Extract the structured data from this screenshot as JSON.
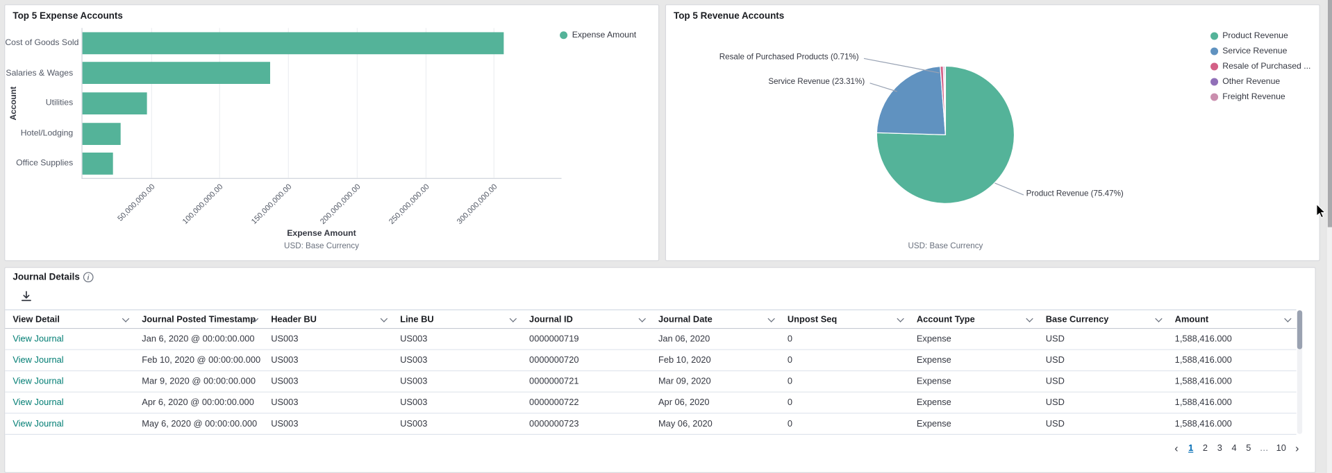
{
  "chart_data": [
    {
      "type": "bar",
      "orientation": "horizontal",
      "title": "Top 5 Expense Accounts",
      "series_name": "Expense Amount",
      "categories": [
        "Cost of Goods Sold",
        "Salaries & Wages",
        "Utilities",
        "Hotel/Lodging",
        "Office Supplies"
      ],
      "values": [
        307000000,
        137000000,
        47000000,
        28000000,
        22000000
      ],
      "xlabel": "Expense Amount",
      "xlabel_sub": "USD: Base Currency",
      "ylabel": "Account",
      "xlim": [
        0,
        350000000
      ],
      "x_ticks": [
        {
          "value": 50000000,
          "label": "50,000,000.00"
        },
        {
          "value": 100000000,
          "label": "100,000,000.00"
        },
        {
          "value": 150000000,
          "label": "150,000,000.00"
        },
        {
          "value": 200000000,
          "label": "200,000,000.00"
        },
        {
          "value": 250000000,
          "label": "250,000,000.00"
        },
        {
          "value": 300000000,
          "label": "300,000,000.00"
        }
      ],
      "bar_color": "#54B399",
      "grid": true,
      "legend_position": "top-right"
    },
    {
      "type": "pie",
      "title": "Top 5 Revenue Accounts",
      "labels": [
        "Product Revenue",
        "Service Revenue",
        "Resale of Purchased Products",
        "Other Revenue",
        "Freight Revenue"
      ],
      "values_pct": [
        75.47,
        23.31,
        0.71,
        0.31,
        0.2
      ],
      "colors": [
        "#54B399",
        "#6092C0",
        "#D36086",
        "#9170B8",
        "#CA8EAE"
      ],
      "legend_labels": [
        "Product Revenue",
        "Service Revenue",
        "Resale of Purchased ...",
        "Other Revenue",
        "Freight Revenue"
      ],
      "callouts": [
        "Resale of Purchased Products (0.71%)",
        "Service Revenue (23.31%)",
        "Product Revenue (75.47%)"
      ],
      "footer": "USD: Base Currency",
      "legend_position": "right"
    }
  ],
  "journal_panel": {
    "title": "Journal Details",
    "info_glyph": "i",
    "columns": [
      "View Detail",
      "Journal Posted Timestamp",
      "Header BU",
      "Line BU",
      "Journal ID",
      "Journal Date",
      "Unpost Seq",
      "Account Type",
      "Base Currency",
      "Amount"
    ],
    "rows": [
      [
        "View Journal",
        "Jan 6, 2020 @ 00:00:00.000",
        "US003",
        "US003",
        "0000000719",
        "Jan 06, 2020",
        "0",
        "Expense",
        "USD",
        "1,588,416.000"
      ],
      [
        "View Journal",
        "Feb 10, 2020 @ 00:00:00.000",
        "US003",
        "US003",
        "0000000720",
        "Feb 10, 2020",
        "0",
        "Expense",
        "USD",
        "1,588,416.000"
      ],
      [
        "View Journal",
        "Mar 9, 2020 @ 00:00:00.000",
        "US003",
        "US003",
        "0000000721",
        "Mar 09, 2020",
        "0",
        "Expense",
        "USD",
        "1,588,416.000"
      ],
      [
        "View Journal",
        "Apr 6, 2020 @ 00:00:00.000",
        "US003",
        "US003",
        "0000000722",
        "Apr 06, 2020",
        "0",
        "Expense",
        "USD",
        "1,588,416.000"
      ],
      [
        "View Journal",
        "May 6, 2020 @ 00:00:00.000",
        "US003",
        "US003",
        "0000000723",
        "May 06, 2020",
        "0",
        "Expense",
        "USD",
        "1,588,416.000"
      ]
    ],
    "pagination": {
      "prev": "‹",
      "pages": [
        "1",
        "2",
        "3",
        "4",
        "5",
        "…",
        "10"
      ],
      "active": "1",
      "ellipsis": "…",
      "next": "›"
    }
  },
  "colors": {
    "link": "#017D73",
    "pagination_active": "#006BB4",
    "panel_bg": "#ffffff",
    "page_bg": "#e8e8e8"
  }
}
